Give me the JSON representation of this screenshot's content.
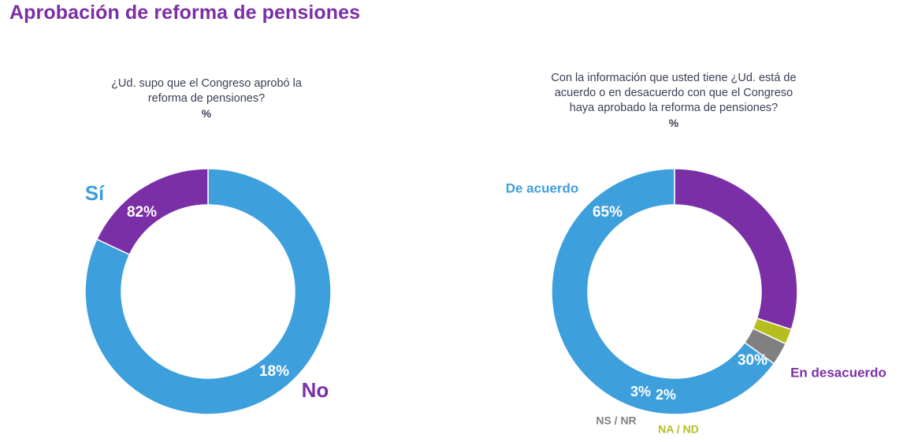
{
  "header": {
    "title": "Aprobación de reforma de pensiones"
  },
  "chart_data": [
    {
      "type": "pie",
      "variant": "donut",
      "question_lines": [
        "¿Ud. supo que el Congreso aprobó la",
        "reforma de pensiones?"
      ],
      "unit": "%",
      "categories": [
        "Sí",
        "No"
      ],
      "values": [
        82,
        18
      ],
      "value_labels": [
        "82%",
        "18%"
      ],
      "colors": [
        "#3d9fdc",
        "#7b2fa6"
      ]
    },
    {
      "type": "pie",
      "variant": "donut",
      "question_lines": [
        "Con la información que usted tiene ¿Ud. está de",
        "acuerdo o en desacuerdo con que el Congreso",
        "haya aprobado la reforma de pensiones?"
      ],
      "unit": "%",
      "categories": [
        "De acuerdo",
        "En desacuerdo",
        "NA / ND",
        "NS / NR"
      ],
      "values": [
        65,
        30,
        2,
        3
      ],
      "value_labels": [
        "65%",
        "30%",
        "2%",
        "3%"
      ],
      "colors": [
        "#3d9fdc",
        "#7b2fa6",
        "#b5be1e",
        "#808080"
      ],
      "category_label_colors": [
        "#3d9fdc",
        "#7b2fa6",
        "#b5be1e",
        "#808080"
      ]
    }
  ]
}
